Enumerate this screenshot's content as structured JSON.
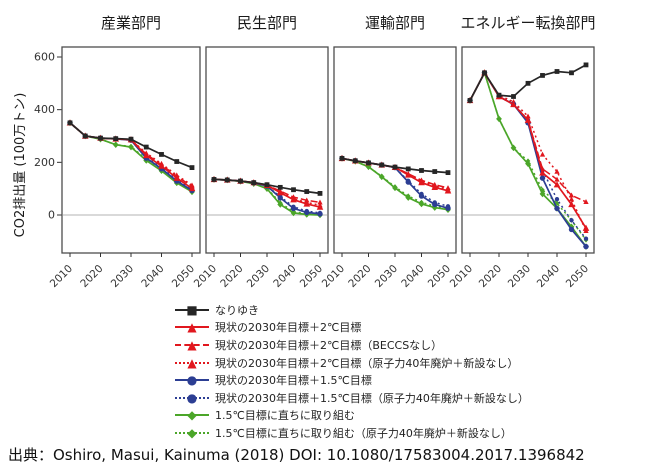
{
  "figure": {
    "ylabel": "CO2排出量 (100万トン)",
    "citation": "出典：Oshiro, Masui, Kainuma (2018) DOI: 10.1080/17583004.2017.1396842"
  },
  "chart_data": {
    "type": "line",
    "x": [
      2010,
      2015,
      2020,
      2025,
      2030,
      2035,
      2040,
      2045,
      2050
    ],
    "xticks": [
      2010,
      2020,
      2030,
      2040,
      2050
    ],
    "yticks": [
      0,
      200,
      400,
      600
    ],
    "ylim": [
      -145,
      640
    ],
    "ylabel": "CO2排出量 (100万トン)",
    "grid": "zero-line-only",
    "legend_position": "bottom",
    "colors": {
      "black": "#262626",
      "red": "#e1171e",
      "blue": "#2c3e93",
      "green": "#4ba629",
      "panel_border": "#4d4d4d",
      "zero_line": "#b3b3b3",
      "tick_text": "#333333"
    },
    "series_meta": [
      {
        "key": "bau",
        "label": "なりゆき",
        "color": "#262626",
        "dash": "solid",
        "marker": "square"
      },
      {
        "key": "t2_solid",
        "label": "現状の2030年目標＋2℃目標",
        "color": "#e1171e",
        "dash": "solid",
        "marker": "triangle"
      },
      {
        "key": "t2_nobeccs",
        "label": "現状の2030年目標＋2℃目標（BECCSなし）",
        "color": "#e1171e",
        "dash": "dashed",
        "marker": "triangle"
      },
      {
        "key": "t2_nonuke",
        "label": "現状の2030年目標＋2℃目標（原子力40年廃炉＋新設なし）",
        "color": "#e1171e",
        "dash": "dotted",
        "marker": "triangle"
      },
      {
        "key": "t15_solid",
        "label": "現状の2030年目標＋1.5℃目標",
        "color": "#2c3e93",
        "dash": "solid",
        "marker": "circle"
      },
      {
        "key": "t15_nonuke",
        "label": "現状の2030年目標＋1.5℃目標（原子力40年廃炉＋新設なし）",
        "color": "#2c3e93",
        "dash": "dotted",
        "marker": "circle"
      },
      {
        "key": "t15now",
        "label": "1.5℃目標に直ちに取り組む",
        "color": "#4ba629",
        "dash": "solid",
        "marker": "diamond"
      },
      {
        "key": "t15now_nonuke",
        "label": "1.5℃目標に直ちに取り組む（原子力40年廃炉＋新設なし）",
        "color": "#4ba629",
        "dash": "dotted",
        "marker": "diamond"
      }
    ],
    "panels": [
      {
        "title": "産業部門",
        "series": {
          "bau": [
            350,
            300,
            292,
            290,
            288,
            258,
            230,
            203,
            180
          ],
          "t2_solid": [
            350,
            300,
            292,
            289,
            286,
            226,
            186,
            140,
            101
          ],
          "t2_nobeccs": [
            350,
            300,
            292,
            289,
            286,
            231,
            191,
            147,
            109
          ],
          "t2_nonuke": [
            350,
            300,
            292,
            289,
            286,
            235,
            195,
            151,
            113
          ],
          "t15_solid": [
            350,
            300,
            292,
            289,
            284,
            216,
            176,
            129,
            93
          ],
          "t15_nonuke": [
            350,
            300,
            292,
            289,
            284,
            221,
            181,
            134,
            98
          ],
          "t15now": [
            350,
            300,
            288,
            267,
            258,
            207,
            168,
            122,
            88
          ],
          "t15now_nonuke": [
            350,
            300,
            288,
            267,
            260,
            212,
            173,
            127,
            93
          ]
        }
      },
      {
        "title": "民生部門",
        "series": {
          "bau": [
            135,
            133,
            129,
            123,
            115,
            105,
            96,
            89,
            82
          ],
          "t2_solid": [
            135,
            133,
            129,
            123,
            113,
            85,
            58,
            42,
            30
          ],
          "t2_nobeccs": [
            135,
            133,
            129,
            123,
            113,
            91,
            68,
            56,
            48
          ],
          "t2_nonuke": [
            135,
            133,
            129,
            123,
            113,
            88,
            62,
            48,
            37
          ],
          "t15_solid": [
            135,
            133,
            129,
            122,
            110,
            65,
            25,
            10,
            4
          ],
          "t15_nonuke": [
            135,
            133,
            129,
            122,
            110,
            70,
            31,
            15,
            8
          ],
          "t15now": [
            135,
            133,
            128,
            119,
            100,
            40,
            8,
            2,
            0
          ],
          "t15now_nonuke": [
            135,
            133,
            128,
            119,
            102,
            46,
            13,
            5,
            2
          ]
        }
      },
      {
        "title": "運輸部門",
        "series": {
          "bau": [
            215,
            206,
            198,
            190,
            182,
            175,
            169,
            165,
            161
          ],
          "t2_solid": [
            215,
            206,
            198,
            190,
            181,
            152,
            123,
            105,
            92
          ],
          "t2_nobeccs": [
            215,
            206,
            198,
            190,
            181,
            157,
            132,
            115,
            103
          ],
          "t2_nonuke": [
            215,
            206,
            198,
            190,
            181,
            155,
            128,
            110,
            97
          ],
          "t15_solid": [
            215,
            206,
            198,
            190,
            180,
            125,
            72,
            40,
            26
          ],
          "t15_nonuke": [
            215,
            206,
            198,
            190,
            180,
            130,
            80,
            48,
            33
          ],
          "t15now": [
            215,
            204,
            183,
            145,
            103,
            66,
            42,
            28,
            20
          ],
          "t15now_nonuke": [
            215,
            204,
            183,
            147,
            107,
            72,
            48,
            34,
            26
          ]
        }
      },
      {
        "title": "エネルギー転換部門",
        "series": {
          "bau": [
            435,
            540,
            455,
            450,
            500,
            530,
            545,
            540,
            570
          ],
          "t2_solid": [
            435,
            540,
            450,
            420,
            360,
            160,
            115,
            40,
            -50
          ],
          "t2_nobeccs": [
            435,
            540,
            450,
            420,
            360,
            175,
            135,
            75,
            50
          ],
          "t2_nonuke": [
            435,
            540,
            455,
            430,
            375,
            230,
            165,
            60,
            -60
          ],
          "t15_solid": [
            435,
            540,
            450,
            420,
            350,
            140,
            25,
            -55,
            -120
          ],
          "t15_nonuke": [
            435,
            540,
            450,
            425,
            360,
            170,
            60,
            -20,
            -90
          ],
          "t15now": [
            435,
            540,
            365,
            255,
            195,
            80,
            25,
            -45,
            -120
          ],
          "t15now_nonuke": [
            435,
            540,
            365,
            255,
            205,
            95,
            45,
            -20,
            -95
          ]
        }
      }
    ]
  }
}
